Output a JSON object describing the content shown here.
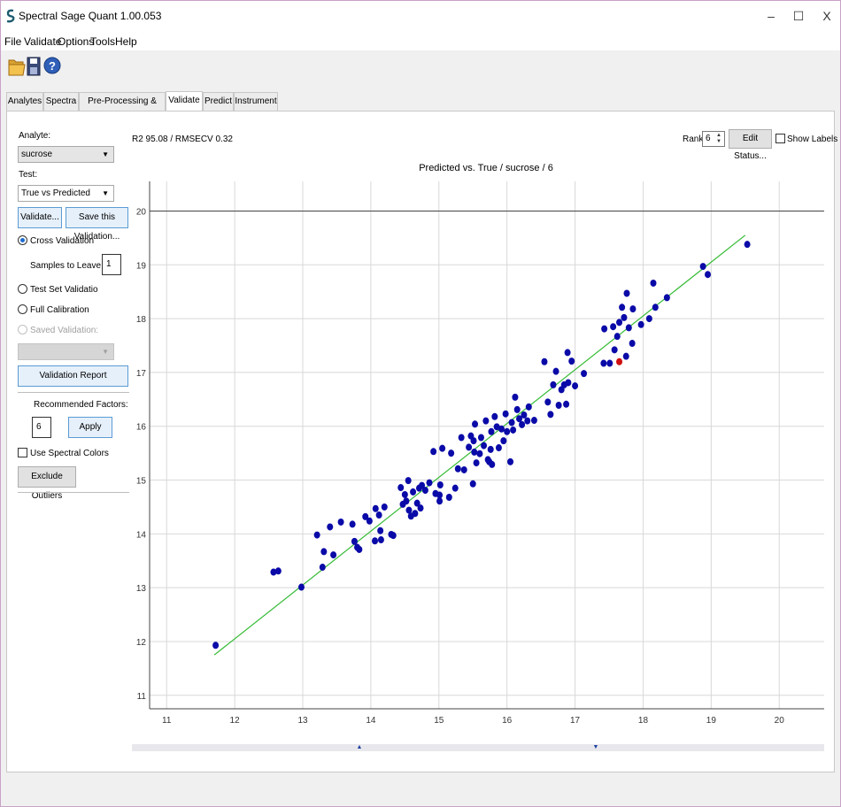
{
  "window": {
    "title": "Spectral Sage Quant 1.00.053",
    "minimize": "–",
    "maximize": "☐",
    "close": "X"
  },
  "menu": [
    "File",
    "Validate",
    "Options",
    "Tools",
    "Help"
  ],
  "toolbar": {
    "open_icon": "folder-icon",
    "save_icon": "floppy-icon",
    "help_icon": "help-icon"
  },
  "tabs": [
    "Analytes",
    "Spectra",
    "Pre-Processing & Regions",
    "Validate",
    "Predict",
    "Instrument"
  ],
  "left": {
    "analyte_label": "Analyte:",
    "analyte_value": "sucrose",
    "test_label": "Test:",
    "test_value": "True vs Predicted",
    "validate_btn": "Validate...",
    "save_validation_btn": "Save this Validation...",
    "cross_validation": "Cross Validation",
    "samples_leave_out_label": "Samples to Leave Out:",
    "samples_leave_out_value": "1",
    "test_set": "Test Set Validatio",
    "full_calibration": "Full Calibration",
    "saved_validation": "Saved Validation:",
    "validation_report_btn": "Validation Report",
    "recommended_factors_label": "Recommended Factors:",
    "recommended_factors_value": "6",
    "apply_btn": "Apply",
    "use_spectral_colors": "Use Spectral Colors",
    "exclude_outliers_btn": "Exclude Outliers"
  },
  "header": {
    "stats": "R2 95.08 / RMSECV 0.32",
    "rank_label": "Rank:",
    "rank_value": "6",
    "edit_status_btn": "Edit Status...",
    "show_labels": "Show Labels"
  },
  "colors": {
    "point": "#0a0aa8",
    "outlier": "#d01010",
    "fit_line": "#33bb33",
    "grid": "#d8d8d8"
  },
  "chart_data": {
    "type": "scatter",
    "title": "Predicted vs. True / sucrose / 6",
    "xlim": [
      10.75,
      20.4
    ],
    "ylim": [
      10.75,
      20.55
    ],
    "xticks": [
      11,
      12,
      13,
      14,
      15,
      16,
      17,
      18,
      19,
      20
    ],
    "yticks": [
      11,
      12,
      13,
      14,
      15,
      16,
      17,
      18,
      19,
      20
    ],
    "fit_line": [
      [
        11.7,
        11.75
      ],
      [
        19.5,
        19.55
      ]
    ],
    "highlight": [
      [
        17.65,
        17.2
      ]
    ],
    "points": [
      [
        11.72,
        11.93
      ],
      [
        12.57,
        13.29
      ],
      [
        12.64,
        13.31
      ],
      [
        12.98,
        13.01
      ],
      [
        13.21,
        13.98
      ],
      [
        13.29,
        13.38
      ],
      [
        13.31,
        13.67
      ],
      [
        13.4,
        14.13
      ],
      [
        13.45,
        13.61
      ],
      [
        13.56,
        14.22
      ],
      [
        13.73,
        14.18
      ],
      [
        13.76,
        13.86
      ],
      [
        13.8,
        13.75
      ],
      [
        13.83,
        13.71
      ],
      [
        13.92,
        14.32
      ],
      [
        13.98,
        14.24
      ],
      [
        14.06,
        13.87
      ],
      [
        14.07,
        14.47
      ],
      [
        14.12,
        14.35
      ],
      [
        14.14,
        14.06
      ],
      [
        14.15,
        13.89
      ],
      [
        14.2,
        14.5
      ],
      [
        14.3,
        13.99
      ],
      [
        14.33,
        13.97
      ],
      [
        14.44,
        14.86
      ],
      [
        14.47,
        14.55
      ],
      [
        14.5,
        14.73
      ],
      [
        14.52,
        14.61
      ],
      [
        14.55,
        14.99
      ],
      [
        14.56,
        14.44
      ],
      [
        14.59,
        14.33
      ],
      [
        14.62,
        14.78
      ],
      [
        14.65,
        14.38
      ],
      [
        14.68,
        14.57
      ],
      [
        14.71,
        14.85
      ],
      [
        14.73,
        14.48
      ],
      [
        14.75,
        14.9
      ],
      [
        14.8,
        14.81
      ],
      [
        14.86,
        14.95
      ],
      [
        14.92,
        15.53
      ],
      [
        14.95,
        14.75
      ],
      [
        15.01,
        14.61
      ],
      [
        15.01,
        14.72
      ],
      [
        15.02,
        14.91
      ],
      [
        15.05,
        15.59
      ],
      [
        15.15,
        14.68
      ],
      [
        15.18,
        15.5
      ],
      [
        15.24,
        14.85
      ],
      [
        15.28,
        15.21
      ],
      [
        15.33,
        15.79
      ],
      [
        15.37,
        15.19
      ],
      [
        15.44,
        15.61
      ],
      [
        15.47,
        15.82
      ],
      [
        15.5,
        14.93
      ],
      [
        15.51,
        15.73
      ],
      [
        15.52,
        15.52
      ],
      [
        15.53,
        16.04
      ],
      [
        15.55,
        15.32
      ],
      [
        15.6,
        15.49
      ],
      [
        15.62,
        15.79
      ],
      [
        15.66,
        15.64
      ],
      [
        15.69,
        16.1
      ],
      [
        15.72,
        15.38
      ],
      [
        15.74,
        15.34
      ],
      [
        15.76,
        15.57
      ],
      [
        15.77,
        15.9
      ],
      [
        15.78,
        15.29
      ],
      [
        15.82,
        16.18
      ],
      [
        15.85,
        15.99
      ],
      [
        15.88,
        15.6
      ],
      [
        15.92,
        15.95
      ],
      [
        15.95,
        15.73
      ],
      [
        15.98,
        16.23
      ],
      [
        16.0,
        15.9
      ],
      [
        16.05,
        15.34
      ],
      [
        16.07,
        16.07
      ],
      [
        16.09,
        15.93
      ],
      [
        16.12,
        16.54
      ],
      [
        16.15,
        16.31
      ],
      [
        16.18,
        16.14
      ],
      [
        16.22,
        16.03
      ],
      [
        16.25,
        16.21
      ],
      [
        16.3,
        16.1
      ],
      [
        16.32,
        16.36
      ],
      [
        16.4,
        16.11
      ],
      [
        16.55,
        17.2
      ],
      [
        16.6,
        16.45
      ],
      [
        16.64,
        16.22
      ],
      [
        16.68,
        16.77
      ],
      [
        16.72,
        17.02
      ],
      [
        16.76,
        16.39
      ],
      [
        16.8,
        16.68
      ],
      [
        16.84,
        16.77
      ],
      [
        16.87,
        16.41
      ],
      [
        16.89,
        17.37
      ],
      [
        16.9,
        16.81
      ],
      [
        16.95,
        17.21
      ],
      [
        17.0,
        16.75
      ],
      [
        17.13,
        16.98
      ],
      [
        17.42,
        17.17
      ],
      [
        17.43,
        17.81
      ],
      [
        17.51,
        17.17
      ],
      [
        17.56,
        17.85
      ],
      [
        17.58,
        17.42
      ],
      [
        17.62,
        17.67
      ],
      [
        17.65,
        17.93
      ],
      [
        17.69,
        18.21
      ],
      [
        17.72,
        18.02
      ],
      [
        17.75,
        17.3
      ],
      [
        17.76,
        18.47
      ],
      [
        17.79,
        17.83
      ],
      [
        17.84,
        17.54
      ],
      [
        17.85,
        18.18
      ],
      [
        17.97,
        17.89
      ],
      [
        18.09,
        18.0
      ],
      [
        18.15,
        18.66
      ],
      [
        18.18,
        18.21
      ],
      [
        18.35,
        18.39
      ],
      [
        18.88,
        18.97
      ],
      [
        18.95,
        18.82
      ],
      [
        19.53,
        19.38
      ]
    ]
  }
}
